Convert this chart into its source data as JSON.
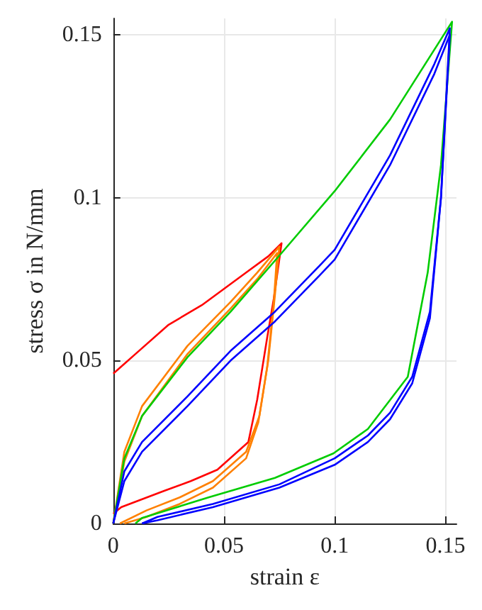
{
  "chart_data": {
    "type": "line",
    "xlabel": "strain ε",
    "ylabel": "stress σ in N/mm",
    "xlim": [
      0,
      0.155
    ],
    "ylim": [
      0,
      0.155
    ],
    "xticks": [
      0,
      0.05,
      0.1,
      0.15
    ],
    "yticks": [
      0,
      0.05,
      0.1,
      0.15
    ],
    "grid": true,
    "marker": "none",
    "line_style": "solid",
    "series": [
      {
        "color": "#ff0000",
        "x": [
          0,
          0.01,
          0.025,
          0.04,
          0.05,
          0.06,
          0.07,
          0.076,
          0.0725,
          0.0695,
          0.065,
          0.061,
          0.047,
          0.035,
          0.023,
          0.0036,
          0
        ],
        "values": [
          0.046,
          0.052,
          0.061,
          0.067,
          0.072,
          0.077,
          0.082,
          0.086,
          0.069,
          0.057,
          0.038,
          0.025,
          0.0165,
          0.013,
          0.01,
          0.005,
          0.003
        ]
      },
      {
        "color": "#ff8000",
        "x": [
          0,
          0.005,
          0.013,
          0.0335,
          0.053,
          0.065,
          0.075,
          0.073,
          0.07,
          0.066,
          0.06,
          0.045,
          0.03,
          0.015,
          0.003
        ],
        "values": [
          0,
          0.022,
          0.036,
          0.0545,
          0.068,
          0.077,
          0.085,
          0.07,
          0.05,
          0.033,
          0.022,
          0.013,
          0.008,
          0.004,
          0
        ]
      },
      {
        "color": "#ff8000",
        "x": [
          0,
          0.005,
          0.013,
          0.0335,
          0.053,
          0.065,
          0.074,
          0.0725,
          0.0695,
          0.0655,
          0.06,
          0.045,
          0.03,
          0.015,
          0.005
        ],
        "values": [
          0,
          0.019,
          0.033,
          0.052,
          0.066,
          0.075,
          0.083,
          0.068,
          0.048,
          0.031,
          0.02,
          0.011,
          0.006,
          0.002,
          0
        ]
      },
      {
        "color": "#00cc00",
        "x": [
          0,
          0.005,
          0.013,
          0.0335,
          0.053,
          0.076,
          0.1,
          0.125,
          0.153,
          0.148,
          0.142,
          0.133,
          0.115,
          0.0994,
          0.073,
          0.043,
          0.013,
          0.01
        ],
        "values": [
          0,
          0.02,
          0.033,
          0.051,
          0.065,
          0.083,
          0.102,
          0.124,
          0.154,
          0.11,
          0.077,
          0.045,
          0.029,
          0.0215,
          0.014,
          0.008,
          0.0017,
          0
        ]
      },
      {
        "color": "#0000ff",
        "x": [
          0,
          0.005,
          0.013,
          0.0335,
          0.053,
          0.073,
          0.093,
          0.1,
          0.125,
          0.145,
          0.152,
          0.148,
          0.143,
          0.135,
          0.125,
          0.115,
          0.1,
          0.075,
          0.045,
          0.02,
          0.013
        ],
        "values": [
          0,
          0.013,
          0.022,
          0.036,
          0.05,
          0.062,
          0.076,
          0.081,
          0.11,
          0.138,
          0.15,
          0.1,
          0.065,
          0.045,
          0.034,
          0.027,
          0.02,
          0.012,
          0.006,
          0.002,
          0
        ]
      },
      {
        "color": "#0000ff",
        "x": [
          0,
          0.005,
          0.013,
          0.0335,
          0.053,
          0.073,
          0.093,
          0.1,
          0.125,
          0.145,
          0.152,
          0.148,
          0.143,
          0.135,
          0.125,
          0.115,
          0.1,
          0.075,
          0.045,
          0.02,
          0.013
        ],
        "values": [
          0,
          0.016,
          0.025,
          0.039,
          0.053,
          0.065,
          0.079,
          0.084,
          0.113,
          0.141,
          0.152,
          0.1,
          0.063,
          0.043,
          0.032,
          0.025,
          0.018,
          0.011,
          0.005,
          0.001,
          0
        ]
      }
    ]
  }
}
